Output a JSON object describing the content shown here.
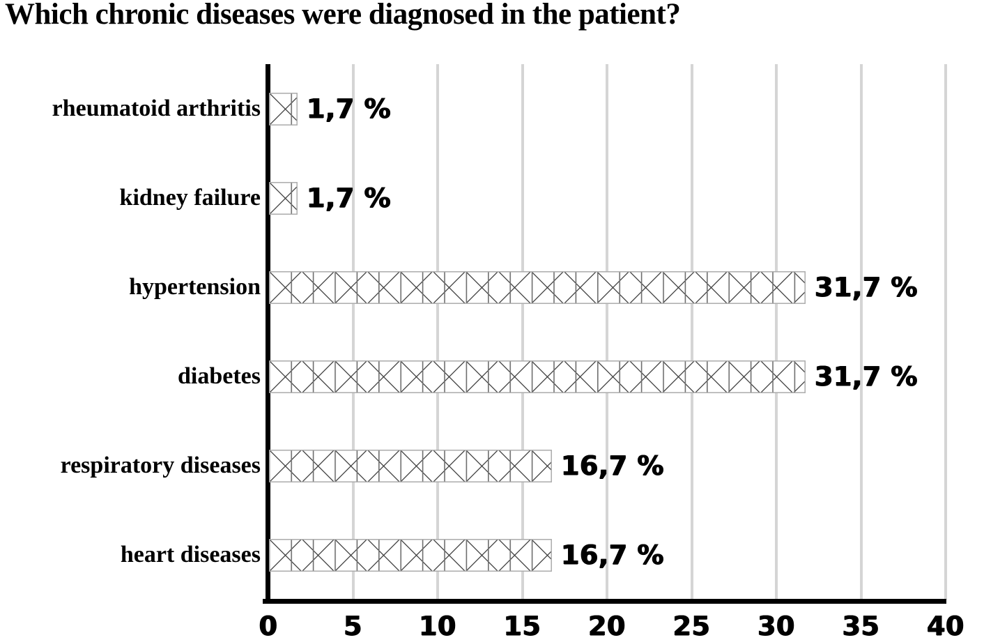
{
  "title": "Which chronic diseases were diagnosed in the patient?",
  "chart_data": {
    "type": "bar",
    "orientation": "horizontal",
    "title": "Which chronic diseases were diagnosed in the patient?",
    "categories": [
      "rheumatoid arthritis",
      "kidney failure",
      "hypertension",
      "diabetes",
      "respiratory diseases",
      "heart diseases"
    ],
    "values": [
      1.7,
      1.7,
      31.7,
      31.7,
      16.7,
      16.7
    ],
    "value_labels": [
      "1,7 %",
      "1,7 %",
      "31,7 %",
      "31,7 %",
      "16,7 %",
      "16,7 %"
    ],
    "xlabel": "",
    "ylabel": "",
    "xlim": [
      0,
      40
    ],
    "x_ticks": [
      0,
      5,
      10,
      15,
      20,
      25,
      30,
      35,
      40
    ],
    "x_tick_labels": [
      "0",
      "5",
      "10",
      "15",
      "20",
      "25",
      "30",
      "35",
      "40"
    ],
    "grid": "vertical",
    "legend": "none",
    "bar_style": "white fill with black X-crosshatch hatch pattern and vertical divider lines",
    "colors": {
      "background": "#ffffff",
      "axis": "#000000",
      "gridline": "#d5d5d5",
      "text": "#000000",
      "hatch_line": "#3c3c3c",
      "divider_line": "#6e6e6e",
      "bar_border": "#ababab"
    }
  }
}
